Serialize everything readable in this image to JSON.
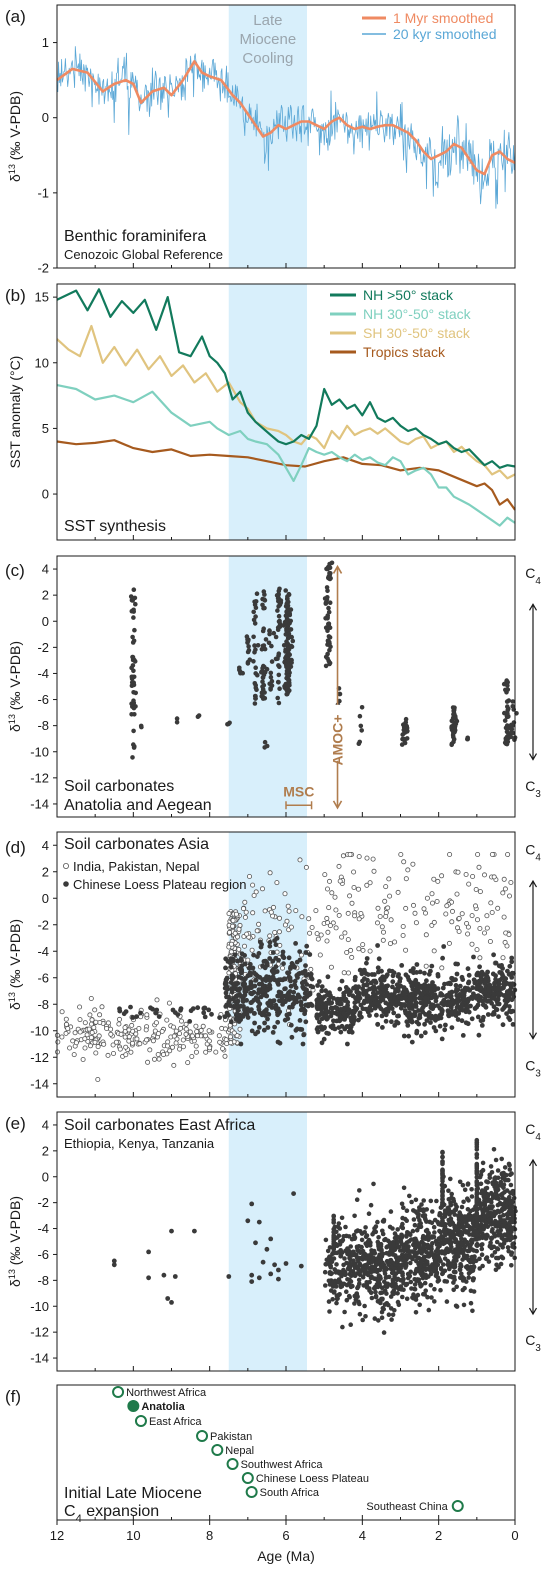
{
  "colors": {
    "axis": "#1a1a1a",
    "shade": "#d8effb",
    "smooth_1myr": "#ef8a62",
    "smooth_20kyr": "#5aa7d6",
    "nh_high": "#127a5c",
    "nh_mid": "#7fd0bf",
    "sh_mid": "#e0c47f",
    "tropics": "#a65a1e",
    "points": "#3a3a3a",
    "amoc": "#b07d4e",
    "init_green": "#1f7a4a",
    "shade_label": "#9aa5ad"
  },
  "x_axis": {
    "label": "Age (Ma)",
    "ticks": [
      "12",
      "10",
      "8",
      "6",
      "4",
      "2",
      "0"
    ]
  },
  "chart_data": [
    {
      "panel": "(a)",
      "type": "line",
      "ylabel": "δ13C (‰ V-PDB)",
      "ylim": [
        -2,
        1.5
      ],
      "yticks": [
        "1",
        "0",
        "-1",
        "-2"
      ],
      "legend": {
        "placement": "top-right",
        "entries": [
          "1 Myr smoothed",
          "20 kyr smoothed"
        ]
      },
      "shade_label": [
        "Late",
        "Miocene",
        "Cooling"
      ],
      "shade_range": [
        7.5,
        5.4
      ],
      "title_lines": [
        "Benthic foraminifera",
        "Cenozoic Global Reference"
      ],
      "series": [
        {
          "name": "1 Myr smoothed",
          "x": [
            12,
            11.6,
            11.2,
            10.8,
            10.5,
            10.2,
            10,
            9.8,
            9.5,
            9.2,
            9,
            8.7,
            8.4,
            8.2,
            8,
            7.7,
            7.4,
            7.2,
            7,
            6.8,
            6.6,
            6.4,
            6.2,
            6,
            5.8,
            5.6,
            5.4,
            5.2,
            5,
            4.8,
            4.6,
            4.4,
            4.2,
            4,
            3.8,
            3.6,
            3.4,
            3.2,
            3,
            2.8,
            2.6,
            2.4,
            2.2,
            2,
            1.8,
            1.6,
            1.4,
            1.2,
            1,
            0.8,
            0.6,
            0.4,
            0.2,
            0
          ],
          "y": [
            0.5,
            0.65,
            0.6,
            0.35,
            0.45,
            0.5,
            0.45,
            0.2,
            0.35,
            0.4,
            0.3,
            0.5,
            0.75,
            0.6,
            0.55,
            0.5,
            0.3,
            0.2,
            0.05,
            -0.1,
            -0.25,
            -0.2,
            -0.1,
            -0.15,
            -0.1,
            -0.05,
            -0.05,
            -0.1,
            -0.15,
            -0.05,
            0,
            -0.1,
            -0.15,
            -0.12,
            -0.15,
            -0.12,
            -0.1,
            -0.1,
            -0.15,
            -0.2,
            -0.3,
            -0.45,
            -0.55,
            -0.5,
            -0.45,
            -0.35,
            -0.4,
            -0.55,
            -0.7,
            -0.75,
            -0.5,
            -0.45,
            -0.55,
            -0.6
          ]
        }
      ]
    },
    {
      "panel": "(b)",
      "type": "line",
      "ylabel": "SST anomaly (°C)",
      "ylim": [
        -3.5,
        16
      ],
      "yticks": [
        "15",
        "10",
        "5",
        "0"
      ],
      "legend": {
        "placement": "top-right",
        "entries": [
          "NH >50° stack",
          "NH 30°-50° stack",
          "SH 30°-50° stack",
          "Tropics stack"
        ]
      },
      "title_lines": [
        "SST synthesis"
      ],
      "series": [
        {
          "name": "NH >50° stack",
          "x": [
            12,
            11.5,
            11.2,
            10.9,
            10.6,
            10.3,
            10,
            9.7,
            9.4,
            9.1,
            8.8,
            8.5,
            8.2,
            8,
            7.8,
            7.6,
            7.4,
            7.2,
            7,
            6.8,
            6.6,
            6.4,
            6.2,
            6,
            5.8,
            5.6,
            5.4,
            5.2,
            5,
            4.8,
            4.6,
            4.4,
            4.2,
            4,
            3.8,
            3.6,
            3.4,
            3.2,
            3,
            2.8,
            2.6,
            2.4,
            2.2,
            2,
            1.8,
            1.6,
            1.4,
            1.2,
            1,
            0.8,
            0.6,
            0.4,
            0.2,
            0
          ],
          "y": [
            14.8,
            15.5,
            14,
            15.6,
            13.5,
            14.7,
            13.8,
            14.8,
            12.5,
            15,
            10.8,
            10.5,
            12,
            10.5,
            10,
            9.2,
            7.2,
            7.8,
            6.2,
            5.5,
            5,
            4.5,
            4,
            3.8,
            4,
            4.5,
            4.2,
            5.2,
            8,
            6.8,
            7.2,
            6.5,
            6.8,
            6,
            7,
            5.8,
            5.5,
            5.8,
            5.2,
            4.8,
            5,
            4.5,
            4.2,
            3.8,
            4,
            3.5,
            3.2,
            3.4,
            2.8,
            2.2,
            2.5,
            2,
            2.2,
            2.1
          ]
        },
        {
          "name": "NH 30°-50° stack",
          "x": [
            12,
            11.5,
            11,
            10.5,
            10,
            9.5,
            9,
            8.5,
            8,
            7.8,
            7.5,
            7.2,
            7,
            6.8,
            6.5,
            6.2,
            6,
            5.8,
            5.6,
            5.4,
            5.2,
            5,
            4.8,
            4.6,
            4.4,
            4.2,
            4,
            3.8,
            3.6,
            3.4,
            3.2,
            3,
            2.8,
            2.6,
            2.4,
            2.2,
            2,
            1.8,
            1.6,
            1.4,
            1.2,
            1,
            0.8,
            0.6,
            0.4,
            0.2,
            0
          ],
          "y": [
            8.3,
            8,
            7.2,
            7.5,
            7,
            7.8,
            6.2,
            5.2,
            5.5,
            5,
            4.5,
            4.8,
            4.2,
            4,
            3.8,
            3,
            2,
            1,
            2.2,
            3.5,
            3.2,
            3,
            3.2,
            2.8,
            2.5,
            3,
            2.6,
            2.8,
            2.4,
            2.2,
            2.8,
            2.5,
            1.5,
            1.8,
            2,
            1.5,
            0.5,
            0.5,
            -0.2,
            -0.5,
            -0.8,
            -1.2,
            -1.6,
            -2,
            -2.4,
            -1.8,
            -2.2
          ]
        },
        {
          "name": "SH 30°-50° stack",
          "x": [
            12,
            11.7,
            11.4,
            11.1,
            10.8,
            10.5,
            10.2,
            9.9,
            9.6,
            9.3,
            9,
            8.7,
            8.4,
            8.1,
            7.8,
            7.5,
            7.2,
            7,
            6.8,
            6.5,
            6.2,
            6,
            5.8,
            5.6,
            5.4,
            5.2,
            5,
            4.8,
            4.6,
            4.4,
            4.2,
            4,
            3.8,
            3.6,
            3.4,
            3.2,
            3,
            2.8,
            2.6,
            2.4,
            2.2,
            2,
            1.8,
            1.6,
            1.4,
            1.2,
            1,
            0.8,
            0.6,
            0.4,
            0.2,
            0
          ],
          "y": [
            11.8,
            11,
            10.5,
            12.8,
            10,
            11.2,
            9.8,
            11,
            9.5,
            10.5,
            9,
            9.8,
            8.5,
            9.2,
            7.8,
            8.5,
            7,
            6.5,
            5.5,
            5,
            4.8,
            4.5,
            4,
            3.8,
            4.5,
            4.2,
            3.5,
            4.8,
            4.2,
            5.2,
            4.5,
            4.8,
            5,
            4.6,
            5,
            4.5,
            4,
            3.8,
            4.2,
            4.4,
            3.5,
            3.8,
            4,
            3.2,
            3.6,
            3,
            2.5,
            2.2,
            1.5,
            1.8,
            1.2,
            1.5
          ]
        },
        {
          "name": "Tropics stack",
          "x": [
            12,
            11.5,
            11,
            10.5,
            10,
            9.5,
            9,
            8.5,
            8,
            7.5,
            7,
            6.5,
            6,
            5.5,
            5,
            4.5,
            4,
            3.5,
            3,
            2.5,
            2,
            1.5,
            1,
            0.8,
            0.6,
            0.4,
            0.2,
            0
          ],
          "y": [
            4,
            3.8,
            3.9,
            4.1,
            3.5,
            3.2,
            3.4,
            2.9,
            3,
            2.9,
            2.8,
            2.5,
            2.2,
            2.1,
            2.5,
            2.8,
            2.3,
            2.2,
            1.8,
            2,
            1.8,
            1.2,
            0.6,
            0.8,
            0.3,
            -0.8,
            -0.4,
            -1.2
          ]
        }
      ]
    },
    {
      "panel": "(c)",
      "type": "scatter",
      "ylabel": "δ13C (‰ V-PDB)",
      "ylim": [
        -15,
        5
      ],
      "yticks": [
        "4",
        "2",
        "0",
        "-2",
        "-4",
        "-6",
        "-8",
        "-10",
        "-12",
        "-14"
      ],
      "title_lines": [
        "Soil carbonates",
        "Anatolia and Aegean"
      ],
      "pathway_labels": [
        "C4",
        "C3"
      ],
      "annotations": {
        "amoc": "AMOC+",
        "msc": "MSC",
        "msc_range": [
          6.0,
          5.33
        ]
      }
    },
    {
      "panel": "(d)",
      "type": "scatter",
      "ylabel": "δ13C (‰ V-PDB)",
      "ylim": [
        -15,
        5
      ],
      "yticks": [
        "4",
        "2",
        "0",
        "-2",
        "-4",
        "-6",
        "-8",
        "-10",
        "-12",
        "-14"
      ],
      "title_lines": [
        "Soil carbonates Asia"
      ],
      "legend": {
        "placement": "top-left",
        "entries": [
          "India, Pakistan, Nepal",
          "Chinese Loess Plateau region"
        ]
      },
      "pathway_labels": [
        "C4",
        "C3"
      ]
    },
    {
      "panel": "(e)",
      "type": "scatter",
      "ylabel": "δ13C (‰ V-PDB)",
      "ylim": [
        -15,
        5
      ],
      "yticks": [
        "4",
        "2",
        "0",
        "-2",
        "-4",
        "-6",
        "-8",
        "-10",
        "-12",
        "-14"
      ],
      "title_lines": [
        "Soil carbonates East Africa",
        "Ethiopia, Kenya, Tanzania"
      ],
      "pathway_labels": [
        "C4",
        "C3"
      ]
    },
    {
      "panel": "(f)",
      "type": "scatter",
      "title_lines": [
        "Initial Late Miocene",
        "C4 expansion"
      ],
      "points": [
        {
          "label": "Northwest Africa",
          "age": 10.4,
          "filled": false
        },
        {
          "label": "Anatolia",
          "age": 10.0,
          "filled": true
        },
        {
          "label": "East Africa",
          "age": 9.8,
          "filled": false
        },
        {
          "label": "Pakistan",
          "age": 8.2,
          "filled": false
        },
        {
          "label": "Nepal",
          "age": 7.8,
          "filled": false
        },
        {
          "label": "Southwest Africa",
          "age": 7.4,
          "filled": false
        },
        {
          "label": "Chinese Loess Plateau",
          "age": 7.0,
          "filled": false
        },
        {
          "label": "South Africa",
          "age": 6.9,
          "filled": false
        },
        {
          "label": "Southeast China",
          "age": 1.5,
          "filled": false
        }
      ]
    }
  ],
  "panel_labels": [
    "(a)",
    "(b)",
    "(c)",
    "(d)",
    "(e)",
    "(f)"
  ]
}
